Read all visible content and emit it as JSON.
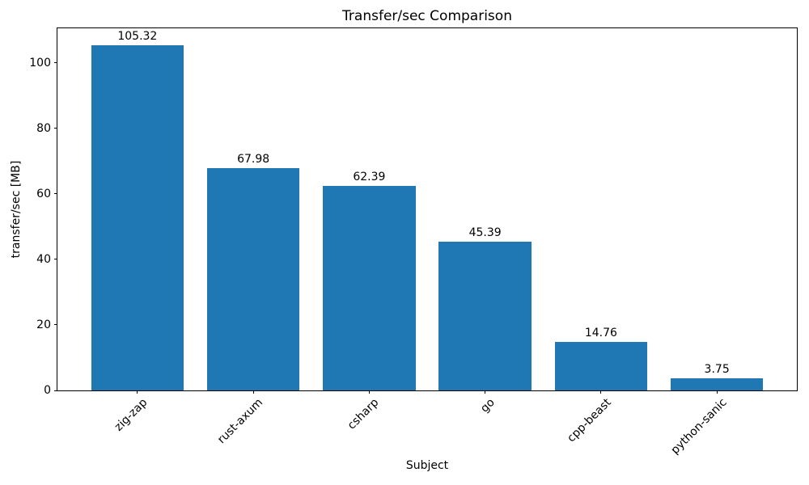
{
  "chart_data": {
    "type": "bar",
    "title": "Transfer/sec Comparison",
    "xlabel": "Subject",
    "ylabel": "transfer/sec [MB]",
    "categories": [
      "zig-zap",
      "rust-axum",
      "csharp",
      "go",
      "cpp-beast",
      "python-sanic"
    ],
    "values": [
      105.32,
      67.98,
      62.39,
      45.39,
      14.76,
      3.75
    ],
    "value_labels": [
      "105.32",
      "67.98",
      "62.39",
      "45.39",
      "14.76",
      "3.75"
    ],
    "yticks": [
      0,
      20,
      40,
      60,
      80,
      100
    ],
    "ylim": [
      0,
      110.6
    ],
    "bar_color": "#1f77b4",
    "axis_color": "#000000",
    "text_color": "#000000",
    "background_color": "#ffffff",
    "grid": false,
    "legend": null,
    "x_tick_rotation_deg": 45
  }
}
